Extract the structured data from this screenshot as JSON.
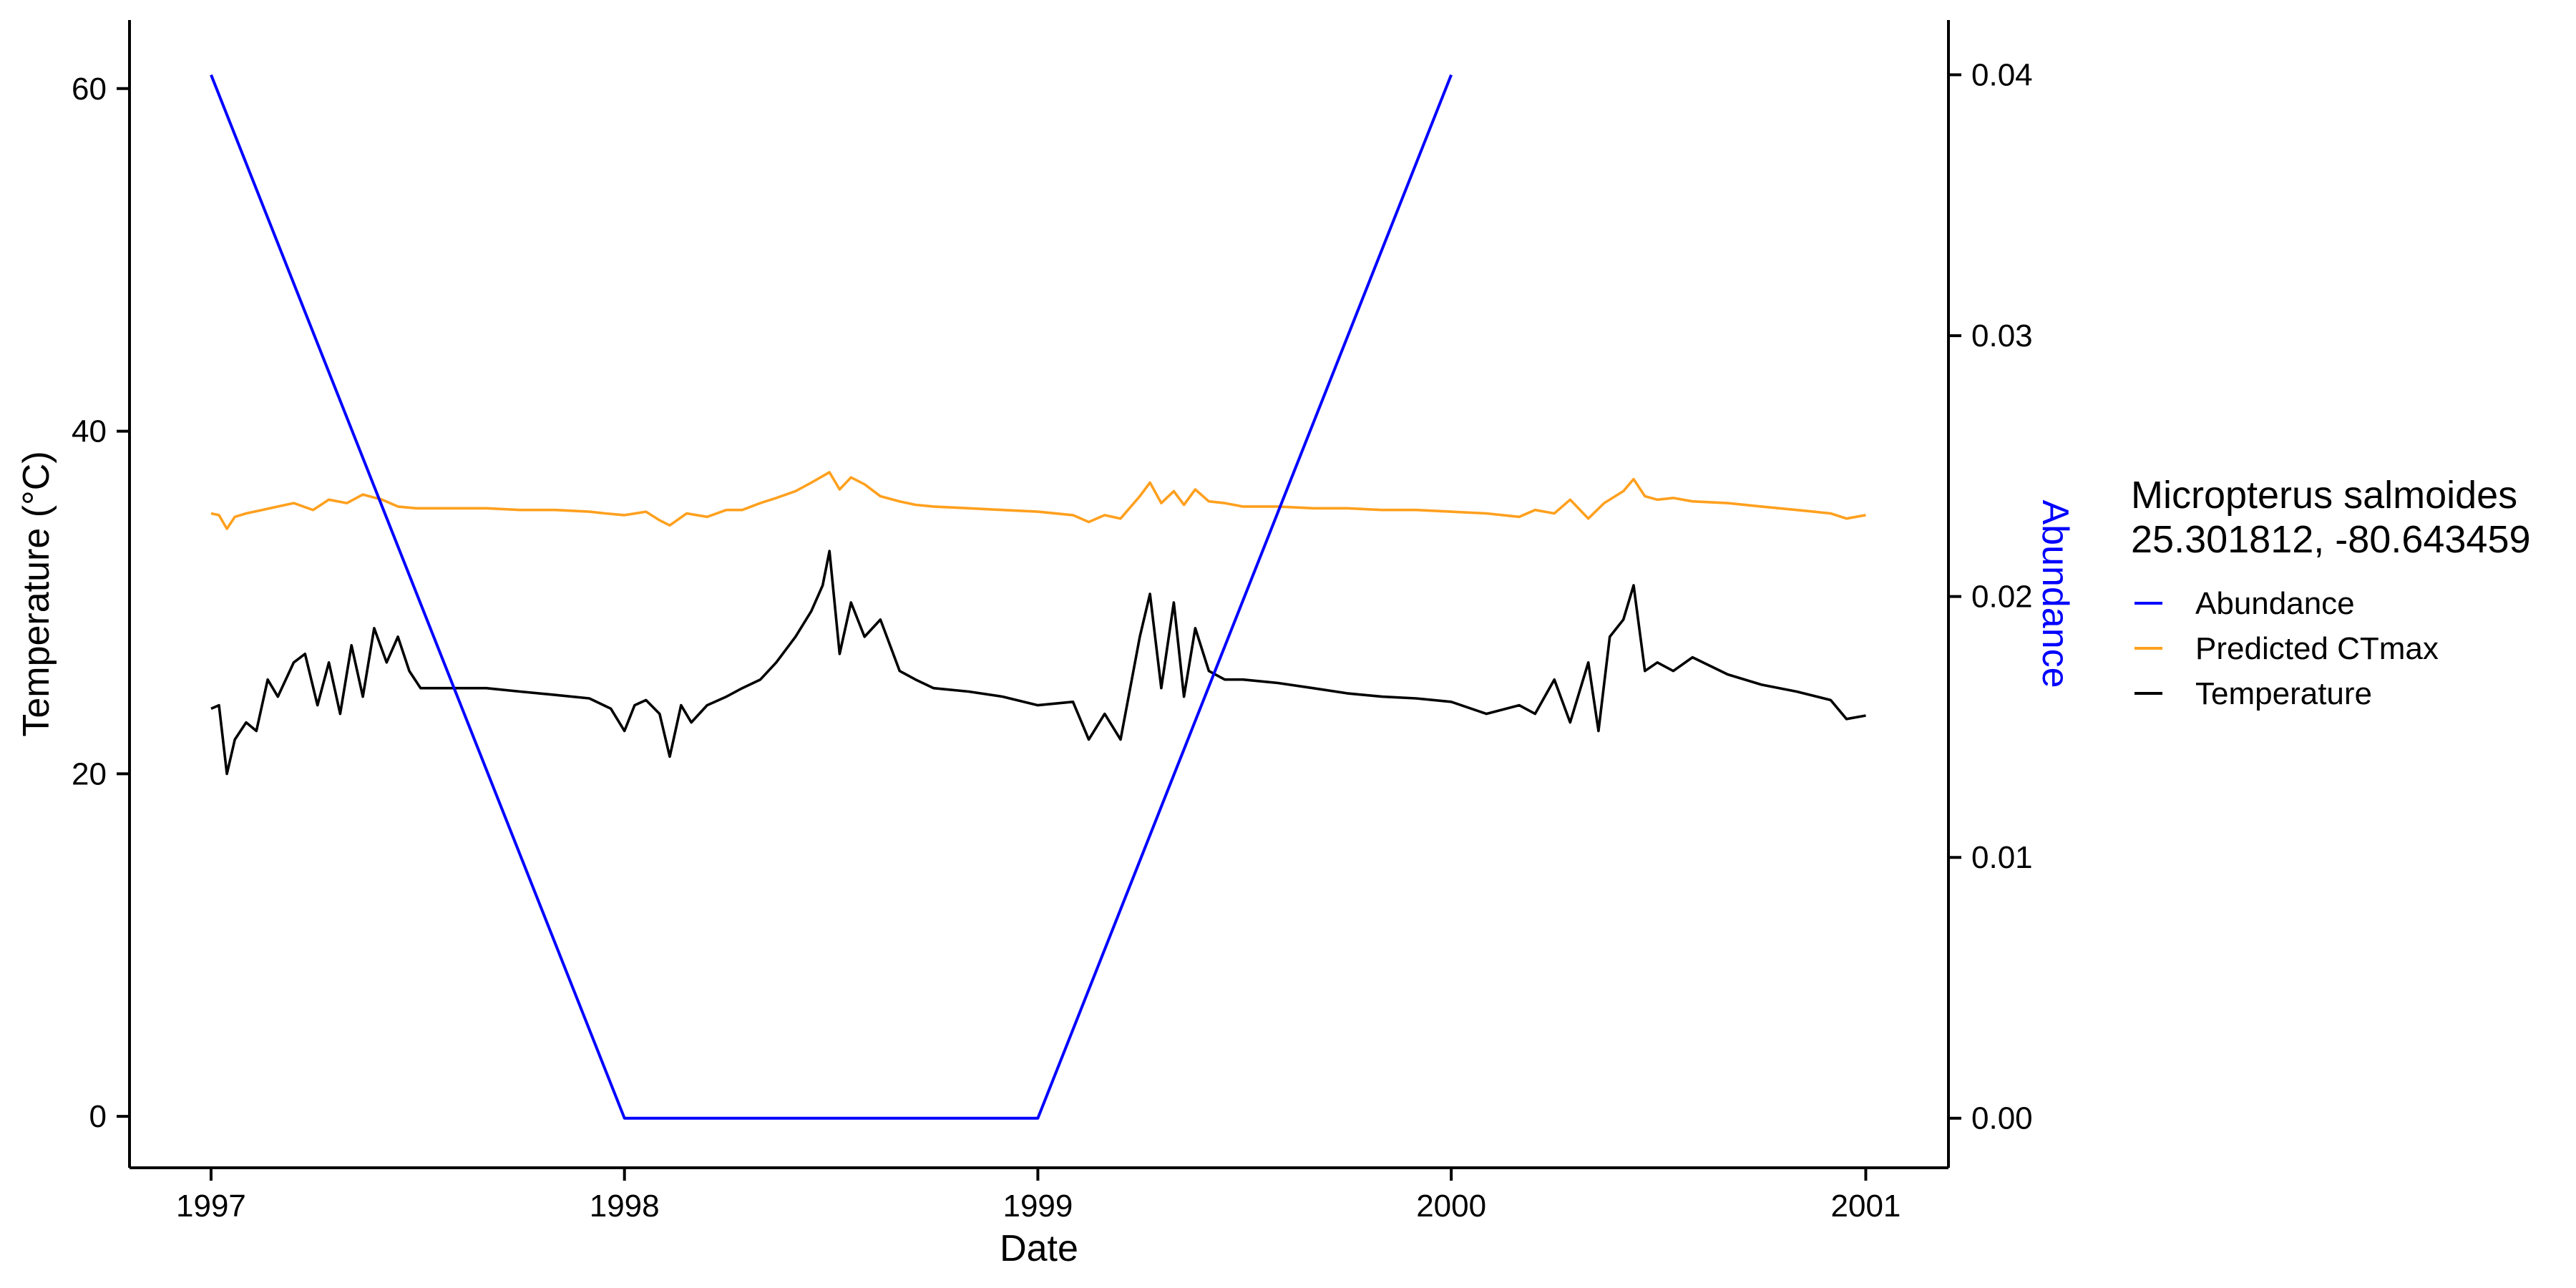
{
  "chart_data": {
    "type": "line",
    "title": "",
    "xlabel": "Date",
    "ylabel": "Temperature (°C)",
    "y2label": "Abundance",
    "x_axis": {
      "type": "date",
      "ticks": [
        "1997",
        "1998",
        "1999",
        "2000",
        "2001"
      ],
      "range": [
        "1996-10-21",
        "2001-03-15"
      ]
    },
    "y_left": {
      "ticks": [
        0,
        20,
        40,
        60
      ],
      "range": [
        -3,
        64
      ]
    },
    "y_right": {
      "ticks": [
        "0.00",
        "0.01",
        "0.02",
        "0.03",
        "0.04"
      ],
      "tick_values": [
        0,
        0.01,
        0.02,
        0.03,
        0.04
      ],
      "range": [
        -0.0019,
        0.0421
      ]
    },
    "grid": false,
    "legend": {
      "title_line1": "Micropterus salmoides",
      "title_line2": "25.301812, -80.643459",
      "placement": "right",
      "entries": [
        "Abundance",
        "Predicted CTmax",
        "Temperature"
      ]
    },
    "colors": {
      "Abundance": "#0000ff",
      "Predicted CTmax": "#ffa01e",
      "Temperature": "#000000"
    },
    "series": [
      {
        "name": "Abundance",
        "axis": "right",
        "points": [
          [
            "1997-01-01",
            0.04
          ],
          [
            "1998-01-01",
            0.0
          ],
          [
            "1999-01-01",
            0.0
          ],
          [
            "2000-01-01",
            0.04
          ]
        ]
      },
      {
        "name": "Predicted CTmax",
        "axis": "left",
        "points": [
          [
            "1997-01-01",
            35.2
          ],
          [
            "1997-01-08",
            35.1
          ],
          [
            "1997-01-15",
            34.3
          ],
          [
            "1997-01-22",
            35.0
          ],
          [
            "1997-02-01",
            35.2
          ],
          [
            "1997-02-15",
            35.4
          ],
          [
            "1997-03-01",
            35.6
          ],
          [
            "1997-03-15",
            35.8
          ],
          [
            "1997-04-01",
            35.4
          ],
          [
            "1997-04-15",
            36.0
          ],
          [
            "1997-05-01",
            35.8
          ],
          [
            "1997-05-15",
            36.3
          ],
          [
            "1997-06-01",
            36.0
          ],
          [
            "1997-06-15",
            35.6
          ],
          [
            "1997-07-01",
            35.5
          ],
          [
            "1997-08-01",
            35.5
          ],
          [
            "1997-09-01",
            35.5
          ],
          [
            "1997-10-01",
            35.4
          ],
          [
            "1997-11-01",
            35.4
          ],
          [
            "1997-12-01",
            35.3
          ],
          [
            "1997-12-15",
            35.2
          ],
          [
            "1998-01-01",
            35.1
          ],
          [
            "1998-01-20",
            35.3
          ],
          [
            "1998-02-01",
            34.8
          ],
          [
            "1998-02-10",
            34.5
          ],
          [
            "1998-02-25",
            35.2
          ],
          [
            "1998-03-15",
            35.0
          ],
          [
            "1998-04-01",
            35.4
          ],
          [
            "1998-04-15",
            35.4
          ],
          [
            "1998-05-01",
            35.8
          ],
          [
            "1998-05-15",
            36.1
          ],
          [
            "1998-06-01",
            36.5
          ],
          [
            "1998-06-15",
            37.0
          ],
          [
            "1998-07-01",
            37.6
          ],
          [
            "1998-07-10",
            36.6
          ],
          [
            "1998-07-20",
            37.3
          ],
          [
            "1998-08-01",
            36.9
          ],
          [
            "1998-08-15",
            36.2
          ],
          [
            "1998-09-01",
            35.9
          ],
          [
            "1998-09-15",
            35.7
          ],
          [
            "1998-10-01",
            35.6
          ],
          [
            "1998-11-01",
            35.5
          ],
          [
            "1998-12-01",
            35.4
          ],
          [
            "1999-01-01",
            35.3
          ],
          [
            "1999-02-01",
            35.1
          ],
          [
            "1999-02-15",
            34.7
          ],
          [
            "1999-03-01",
            35.1
          ],
          [
            "1999-03-15",
            34.9
          ],
          [
            "1999-04-01",
            36.2
          ],
          [
            "1999-04-10",
            37.0
          ],
          [
            "1999-04-20",
            35.8
          ],
          [
            "1999-05-01",
            36.5
          ],
          [
            "1999-05-10",
            35.7
          ],
          [
            "1999-05-20",
            36.6
          ],
          [
            "1999-06-01",
            35.9
          ],
          [
            "1999-06-15",
            35.8
          ],
          [
            "1999-07-01",
            35.6
          ],
          [
            "1999-08-01",
            35.6
          ],
          [
            "1999-09-01",
            35.5
          ],
          [
            "1999-10-01",
            35.5
          ],
          [
            "1999-11-01",
            35.4
          ],
          [
            "1999-12-01",
            35.4
          ],
          [
            "2000-01-01",
            35.3
          ],
          [
            "2000-02-01",
            35.2
          ],
          [
            "2000-03-01",
            35.0
          ],
          [
            "2000-03-15",
            35.4
          ],
          [
            "2000-04-01",
            35.2
          ],
          [
            "2000-04-15",
            36.0
          ],
          [
            "2000-05-01",
            34.9
          ],
          [
            "2000-05-15",
            35.8
          ],
          [
            "2000-06-01",
            36.5
          ],
          [
            "2000-06-10",
            37.2
          ],
          [
            "2000-06-20",
            36.2
          ],
          [
            "2000-07-01",
            36.0
          ],
          [
            "2000-07-15",
            36.1
          ],
          [
            "2000-08-01",
            35.9
          ],
          [
            "2000-09-01",
            35.8
          ],
          [
            "2000-10-01",
            35.6
          ],
          [
            "2000-11-01",
            35.4
          ],
          [
            "2000-12-01",
            35.2
          ],
          [
            "2000-12-15",
            34.9
          ],
          [
            "2001-01-01",
            35.1
          ]
        ]
      },
      {
        "name": "Temperature",
        "axis": "left",
        "points": [
          [
            "1997-01-01",
            23.8
          ],
          [
            "1997-01-08",
            24.0
          ],
          [
            "1997-01-15",
            20.0
          ],
          [
            "1997-01-22",
            22.0
          ],
          [
            "1997-02-01",
            23.0
          ],
          [
            "1997-02-10",
            22.5
          ],
          [
            "1997-02-20",
            25.5
          ],
          [
            "1997-03-01",
            24.5
          ],
          [
            "1997-03-15",
            26.5
          ],
          [
            "1997-03-25",
            27.0
          ],
          [
            "1997-04-05",
            24.0
          ],
          [
            "1997-04-15",
            26.5
          ],
          [
            "1997-04-25",
            23.5
          ],
          [
            "1997-05-05",
            27.5
          ],
          [
            "1997-05-15",
            24.5
          ],
          [
            "1997-05-25",
            28.5
          ],
          [
            "1997-06-05",
            26.5
          ],
          [
            "1997-06-15",
            28.0
          ],
          [
            "1997-06-25",
            26.0
          ],
          [
            "1997-07-05",
            25.0
          ],
          [
            "1997-08-01",
            25.0
          ],
          [
            "1997-09-01",
            25.0
          ],
          [
            "1997-10-01",
            24.8
          ],
          [
            "1997-11-01",
            24.6
          ],
          [
            "1997-12-01",
            24.4
          ],
          [
            "1997-12-20",
            23.8
          ],
          [
            "1998-01-01",
            22.5
          ],
          [
            "1998-01-10",
            24.0
          ],
          [
            "1998-01-20",
            24.3
          ],
          [
            "1998-02-01",
            23.5
          ],
          [
            "1998-02-10",
            21.0
          ],
          [
            "1998-02-20",
            24.0
          ],
          [
            "1998-03-01",
            23.0
          ],
          [
            "1998-03-15",
            24.0
          ],
          [
            "1998-04-01",
            24.5
          ],
          [
            "1998-04-15",
            25.0
          ],
          [
            "1998-05-01",
            25.5
          ],
          [
            "1998-05-15",
            26.5
          ],
          [
            "1998-06-01",
            28.0
          ],
          [
            "1998-06-15",
            29.5
          ],
          [
            "1998-06-25",
            31.0
          ],
          [
            "1998-07-01",
            33.0
          ],
          [
            "1998-07-10",
            27.0
          ],
          [
            "1998-07-20",
            30.0
          ],
          [
            "1998-08-01",
            28.0
          ],
          [
            "1998-08-15",
            29.0
          ],
          [
            "1998-09-01",
            26.0
          ],
          [
            "1998-09-15",
            25.5
          ],
          [
            "1998-10-01",
            25.0
          ],
          [
            "1998-11-01",
            24.8
          ],
          [
            "1998-12-01",
            24.5
          ],
          [
            "1999-01-01",
            24.0
          ],
          [
            "1999-02-01",
            24.2
          ],
          [
            "1999-02-15",
            22.0
          ],
          [
            "1999-03-01",
            23.5
          ],
          [
            "1999-03-15",
            22.0
          ],
          [
            "1999-04-01",
            28.0
          ],
          [
            "1999-04-10",
            30.5
          ],
          [
            "1999-04-20",
            25.0
          ],
          [
            "1999-05-01",
            30.0
          ],
          [
            "1999-05-10",
            24.5
          ],
          [
            "1999-05-20",
            28.5
          ],
          [
            "1999-06-01",
            26.0
          ],
          [
            "1999-06-15",
            25.5
          ],
          [
            "1999-07-01",
            25.5
          ],
          [
            "1999-08-01",
            25.3
          ],
          [
            "1999-09-01",
            25.0
          ],
          [
            "1999-10-01",
            24.7
          ],
          [
            "1999-11-01",
            24.5
          ],
          [
            "1999-12-01",
            24.4
          ],
          [
            "2000-01-01",
            24.2
          ],
          [
            "2000-02-01",
            23.5
          ],
          [
            "2000-03-01",
            24.0
          ],
          [
            "2000-03-15",
            23.5
          ],
          [
            "2000-04-01",
            25.5
          ],
          [
            "2000-04-15",
            23.0
          ],
          [
            "2000-05-01",
            26.5
          ],
          [
            "2000-05-10",
            22.5
          ],
          [
            "2000-05-20",
            28.0
          ],
          [
            "2000-06-01",
            29.0
          ],
          [
            "2000-06-10",
            31.0
          ],
          [
            "2000-06-20",
            26.0
          ],
          [
            "2000-07-01",
            26.5
          ],
          [
            "2000-07-15",
            26.0
          ],
          [
            "2000-08-01",
            26.8
          ],
          [
            "2000-09-01",
            25.8
          ],
          [
            "2000-10-01",
            25.2
          ],
          [
            "2000-11-01",
            24.8
          ],
          [
            "2000-12-01",
            24.3
          ],
          [
            "2000-12-15",
            23.2
          ],
          [
            "2001-01-01",
            23.4
          ]
        ]
      }
    ]
  }
}
